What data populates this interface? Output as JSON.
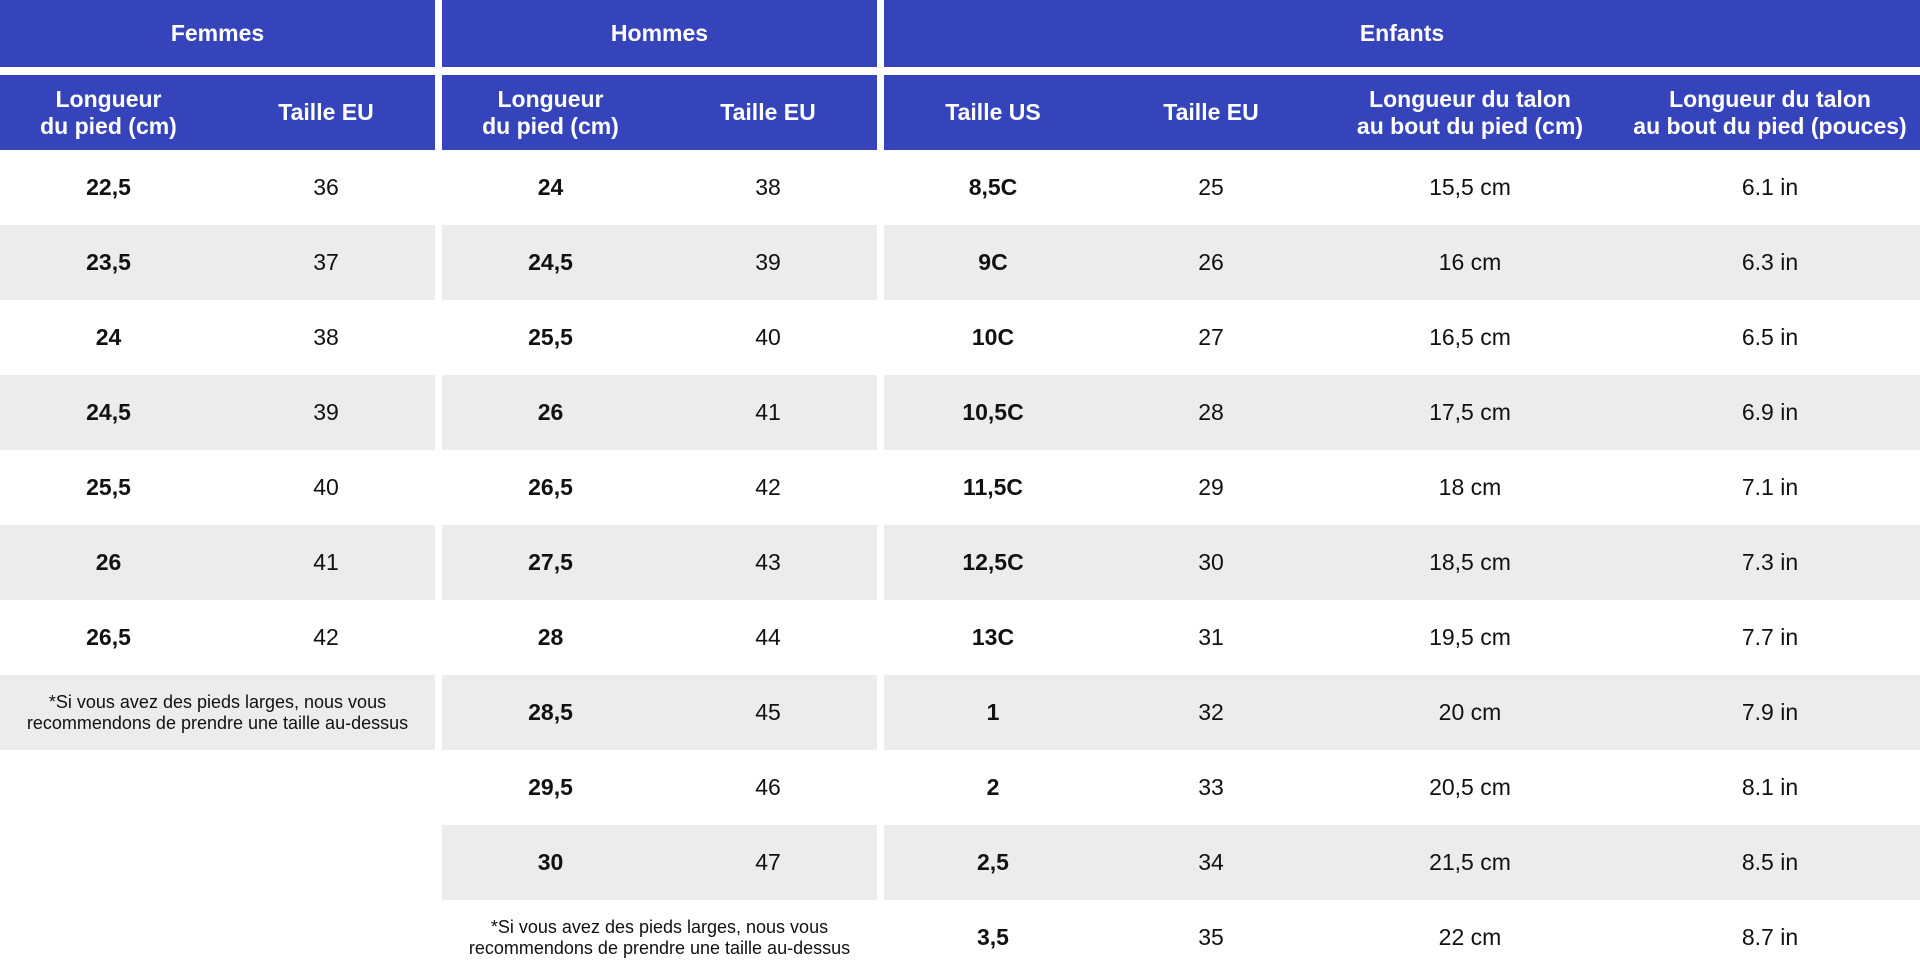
{
  "femmes": {
    "title": "Femmes",
    "headers": [
      "Longueur\ndu pied (cm)",
      "Taille EU"
    ],
    "rows": [
      [
        "22,5",
        "36"
      ],
      [
        "23,5",
        "37"
      ],
      [
        "24",
        "38"
      ],
      [
        "24,5",
        "39"
      ],
      [
        "25,5",
        "40"
      ],
      [
        "26",
        "41"
      ],
      [
        "26,5",
        "42"
      ]
    ],
    "note": "*Si vous avez des pieds larges, nous vous\nrecommendons de prendre une taille au-dessus"
  },
  "hommes": {
    "title": "Hommes",
    "headers": [
      "Longueur\ndu pied (cm)",
      "Taille EU"
    ],
    "rows": [
      [
        "24",
        "38"
      ],
      [
        "24,5",
        "39"
      ],
      [
        "25,5",
        "40"
      ],
      [
        "26",
        "41"
      ],
      [
        "26,5",
        "42"
      ],
      [
        "27,5",
        "43"
      ],
      [
        "28",
        "44"
      ],
      [
        "28,5",
        "45"
      ],
      [
        "29,5",
        "46"
      ],
      [
        "30",
        "47"
      ]
    ],
    "note": "*Si vous avez des pieds larges, nous vous\nrecommendons de prendre une taille au-dessus"
  },
  "enfants": {
    "title": "Enfants",
    "headers": [
      "Taille US",
      "Taille EU",
      "Longueur du talon\nau bout du pied (cm)",
      "Longueur du talon\nau bout du pied (pouces)"
    ],
    "rows": [
      [
        "8,5C",
        "25",
        "15,5 cm",
        "6.1 in"
      ],
      [
        "9C",
        "26",
        "16 cm",
        "6.3 in"
      ],
      [
        "10C",
        "27",
        "16,5 cm",
        "6.5 in"
      ],
      [
        "10,5C",
        "28",
        "17,5 cm",
        "6.9 in"
      ],
      [
        "11,5C",
        "29",
        "18 cm",
        "7.1 in"
      ],
      [
        "12,5C",
        "30",
        "18,5 cm",
        "7.3 in"
      ],
      [
        "13C",
        "31",
        "19,5 cm",
        "7.7 in"
      ],
      [
        "1",
        "32",
        "20 cm",
        "7.9 in"
      ],
      [
        "2",
        "33",
        "20,5 cm",
        "8.1 in"
      ],
      [
        "2,5",
        "34",
        "21,5 cm",
        "8.5 in"
      ],
      [
        "3,5",
        "35",
        "22 cm",
        "8.7 in"
      ]
    ]
  },
  "colors": {
    "header_bg": "#3644bc",
    "alt_row_bg": "#ececec"
  }
}
